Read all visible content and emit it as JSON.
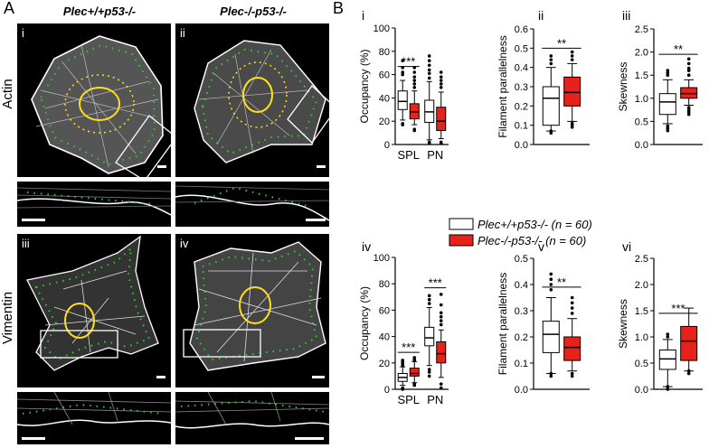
{
  "figure": {
    "panel_a_letter": "A",
    "panel_b_letter": "B",
    "genotype_wt": "Plec+/+p53-/-",
    "genotype_ko": "Plec-/-p53-/-",
    "row_actin": "Actin",
    "row_vimentin": "Vimentin",
    "micro_labels": [
      "i",
      "ii",
      "iii",
      "iv"
    ],
    "legend": [
      {
        "label": "Plec+/+p53-/- (n = 60)",
        "color": "#ffffff"
      },
      {
        "label": "Plec-/-p53-/- (n = 60)",
        "color": "#e8221a"
      }
    ]
  },
  "colors": {
    "wt_fill": "#ffffff",
    "ko_fill": "#e8221a",
    "cell_outline": "#ffffff",
    "nucleus": "#ffe01a",
    "dots": "#33cc33"
  },
  "chart_data": [
    {
      "id": "i",
      "type": "box",
      "ylabel": "Occupancy (%)",
      "ylim": [
        0,
        100
      ],
      "yticks": [
        0,
        20,
        40,
        60,
        80,
        100
      ],
      "categories": [
        "SPL",
        "PN"
      ],
      "series": [
        {
          "group": "SPL",
          "genotype": "wt",
          "whislo": 21,
          "q1": 30,
          "med": 37,
          "q3": 46,
          "whishi": 55,
          "outliers": [
            17,
            18,
            60,
            62,
            66,
            72
          ]
        },
        {
          "group": "SPL",
          "genotype": "ko",
          "whislo": 17,
          "q1": 22,
          "med": 28,
          "q3": 35,
          "whishi": 46,
          "outliers": [
            12,
            13,
            49,
            52,
            55,
            58,
            62,
            66
          ]
        },
        {
          "group": "PN",
          "genotype": "wt",
          "whislo": 4,
          "q1": 19,
          "med": 28,
          "q3": 38,
          "whishi": 54,
          "outliers": [
            1,
            2,
            57,
            61,
            64,
            68,
            72,
            76
          ]
        },
        {
          "group": "PN",
          "genotype": "ko",
          "whislo": 5,
          "q1": 12,
          "med": 20,
          "q3": 32,
          "whishi": 45,
          "outliers": [
            1,
            2,
            49,
            52,
            55,
            58,
            62
          ]
        }
      ],
      "significance": [
        {
          "group": "SPL",
          "text": "***",
          "y": 67
        }
      ]
    },
    {
      "id": "ii",
      "type": "box",
      "ylabel": "Filament parallelness",
      "ylim": [
        0,
        0.6
      ],
      "yticks": [
        0,
        0.1,
        0.2,
        0.3,
        0.4,
        0.5,
        0.6
      ],
      "categories": [
        ""
      ],
      "series": [
        {
          "group": "",
          "genotype": "wt",
          "whislo": 0.07,
          "q1": 0.1,
          "med": 0.24,
          "q3": 0.3,
          "whishi": 0.4,
          "outliers": [
            0.06,
            0.07,
            0.42,
            0.44,
            0.46
          ]
        },
        {
          "group": "",
          "genotype": "ko",
          "whislo": 0.12,
          "q1": 0.2,
          "med": 0.27,
          "q3": 0.35,
          "whishi": 0.42,
          "outliers": [
            0.09,
            0.1,
            0.11,
            0.44,
            0.46,
            0.48
          ]
        }
      ],
      "significance": [
        {
          "group": "",
          "text": "**",
          "y": 0.5
        }
      ]
    },
    {
      "id": "iii",
      "type": "box",
      "ylabel": "Skewness",
      "ylim": [
        0,
        2.5
      ],
      "yticks": [
        0,
        0.5,
        1.0,
        1.5,
        2.0,
        2.5
      ],
      "categories": [
        ""
      ],
      "series": [
        {
          "group": "",
          "genotype": "wt",
          "whislo": 0.45,
          "q1": 0.65,
          "med": 0.92,
          "q3": 1.1,
          "whishi": 1.4,
          "outliers": [
            0.3,
            0.35,
            0.4,
            1.5,
            1.55,
            1.6
          ]
        },
        {
          "group": "",
          "genotype": "ko",
          "whislo": 0.85,
          "q1": 1.0,
          "med": 1.1,
          "q3": 1.23,
          "whishi": 1.4,
          "outliers": [
            0.65,
            0.7,
            0.75,
            0.8,
            1.5,
            1.6,
            1.65,
            1.75,
            1.85
          ]
        }
      ],
      "significance": [
        {
          "group": "",
          "text": "**",
          "y": 1.95
        }
      ]
    },
    {
      "id": "iv",
      "type": "box",
      "ylabel": "Occupancy (%)",
      "ylim": [
        0,
        100
      ],
      "yticks": [
        0,
        20,
        40,
        60,
        80,
        100
      ],
      "categories": [
        "SPL",
        "PN"
      ],
      "series": [
        {
          "group": "SPL",
          "genotype": "wt",
          "whislo": 3,
          "q1": 6,
          "med": 9,
          "q3": 12,
          "whishi": 17,
          "outliers": [
            0,
            1,
            18,
            19,
            20,
            21,
            22
          ]
        },
        {
          "group": "SPL",
          "genotype": "ko",
          "whislo": 5,
          "q1": 10,
          "med": 12,
          "q3": 16,
          "whishi": 21,
          "outliers": [
            3,
            4,
            22,
            23,
            24
          ]
        },
        {
          "group": "PN",
          "genotype": "wt",
          "whislo": 18,
          "q1": 33,
          "med": 39,
          "q3": 47,
          "whishi": 62,
          "outliers": [
            10,
            13,
            15,
            65,
            68,
            71
          ]
        },
        {
          "group": "PN",
          "genotype": "ko",
          "whislo": 9,
          "q1": 20,
          "med": 27,
          "q3": 36,
          "whishi": 45,
          "outliers": [
            1,
            4,
            49,
            52,
            55,
            58,
            64,
            72
          ]
        }
      ],
      "significance": [
        {
          "group": "SPL",
          "text": "***",
          "y": 28
        },
        {
          "group": "PN",
          "text": "***",
          "y": 77
        }
      ]
    },
    {
      "id": "v",
      "type": "box",
      "ylabel": "Filament parallelness",
      "ylim": [
        0,
        0.5
      ],
      "yticks": [
        0,
        0.1,
        0.2,
        0.3,
        0.4,
        0.5
      ],
      "categories": [
        ""
      ],
      "series": [
        {
          "group": "",
          "genotype": "wt",
          "whislo": 0.06,
          "q1": 0.14,
          "med": 0.21,
          "q3": 0.26,
          "whishi": 0.35,
          "outliers": [
            0.05,
            0.06,
            0.38,
            0.4,
            0.42,
            0.44
          ]
        },
        {
          "group": "",
          "genotype": "ko",
          "whislo": 0.07,
          "q1": 0.11,
          "med": 0.16,
          "q3": 0.2,
          "whishi": 0.27,
          "outliers": [
            0.05,
            0.06,
            0.29,
            0.31,
            0.33,
            0.35
          ]
        }
      ],
      "significance": [
        {
          "group": "",
          "text": "**",
          "y": 0.39
        }
      ]
    },
    {
      "id": "vi",
      "type": "box",
      "ylabel": "Skewness",
      "ylim": [
        0,
        2.5
      ],
      "yticks": [
        0,
        0.5,
        1.0,
        1.5,
        2.0,
        2.5
      ],
      "categories": [
        ""
      ],
      "series": [
        {
          "group": "",
          "genotype": "wt",
          "whislo": 0.05,
          "q1": 0.38,
          "med": 0.58,
          "q3": 0.75,
          "whishi": 0.95,
          "outliers": [
            0.0,
            0.05,
            1.0,
            1.05
          ]
        },
        {
          "group": "",
          "genotype": "ko",
          "whislo": 0.35,
          "q1": 0.55,
          "med": 0.92,
          "q3": 1.2,
          "whishi": 1.55,
          "outliers": [
            0.3,
            0.35
          ]
        }
      ],
      "significance": [
        {
          "group": "",
          "text": "***",
          "y": 1.45
        }
      ]
    }
  ]
}
